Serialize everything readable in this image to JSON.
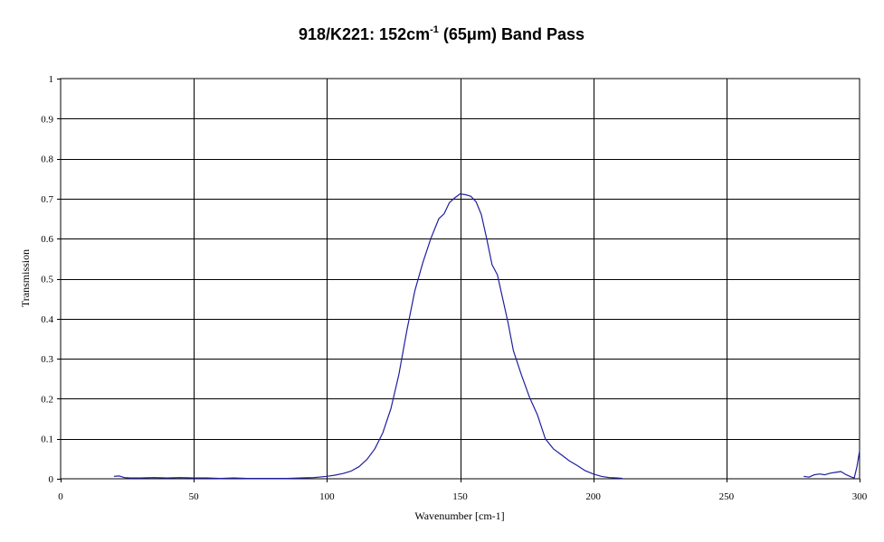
{
  "chart_data": {
    "type": "line",
    "title": {
      "main": "918/K221: 152cm",
      "superscript": "-1",
      "rest": " (65",
      "micro": "μ",
      "rest2": "m) Band Pass"
    },
    "xlabel": "Wavenumber [cm-1]",
    "ylabel": "Transmission",
    "xlim": [
      0,
      300
    ],
    "ylim": [
      0,
      1
    ],
    "xticks": [
      0,
      50,
      100,
      150,
      200,
      250,
      300
    ],
    "yticks": [
      0,
      0.1,
      0.2,
      0.3,
      0.4,
      0.5,
      0.6,
      0.7,
      0.8,
      0.9,
      1
    ],
    "grid": true,
    "legend": "none",
    "line_color": "#1f1fa0",
    "series": [
      {
        "segments": [
          [
            [
              20,
              0.006
            ],
            [
              22,
              0.007
            ],
            [
              24,
              0.003
            ],
            [
              26,
              0.002
            ],
            [
              30,
              0.002
            ],
            [
              35,
              0.003
            ],
            [
              40,
              0.002
            ],
            [
              45,
              0.003
            ],
            [
              50,
              0.002
            ],
            [
              55,
              0.002
            ],
            [
              60,
              0.001
            ],
            [
              65,
              0.002
            ],
            [
              70,
              0.001
            ],
            [
              75,
              0.001
            ],
            [
              80,
              0.001
            ],
            [
              85,
              0.001
            ],
            [
              90,
              0.002
            ],
            [
              95,
              0.003
            ],
            [
              100,
              0.006
            ],
            [
              103,
              0.009
            ],
            [
              106,
              0.013
            ],
            [
              109,
              0.019
            ],
            [
              112,
              0.03
            ],
            [
              115,
              0.048
            ],
            [
              118,
              0.075
            ],
            [
              121,
              0.115
            ],
            [
              124,
              0.175
            ],
            [
              127,
              0.26
            ],
            [
              130,
              0.37
            ],
            [
              133,
              0.47
            ],
            [
              136,
              0.54
            ],
            [
              139,
              0.6
            ],
            [
              142,
              0.65
            ],
            [
              144,
              0.662
            ],
            [
              146,
              0.69
            ],
            [
              148,
              0.702
            ],
            [
              150,
              0.712
            ],
            [
              152,
              0.71
            ],
            [
              154,
              0.706
            ],
            [
              156,
              0.692
            ],
            [
              158,
              0.66
            ],
            [
              160,
              0.6
            ],
            [
              162,
              0.535
            ],
            [
              164,
              0.51
            ],
            [
              166,
              0.45
            ],
            [
              168,
              0.39
            ],
            [
              170,
              0.32
            ],
            [
              173,
              0.26
            ],
            [
              176,
              0.205
            ],
            [
              179,
              0.16
            ],
            [
              182,
              0.1
            ],
            [
              185,
              0.075
            ],
            [
              188,
              0.06
            ],
            [
              191,
              0.045
            ],
            [
              194,
              0.033
            ],
            [
              197,
              0.02
            ],
            [
              200,
              0.012
            ],
            [
              203,
              0.006
            ],
            [
              206,
              0.003
            ],
            [
              209,
              0.002
            ],
            [
              211,
              0.001
            ]
          ],
          [
            [
              279,
              0.006
            ],
            [
              281,
              0.004
            ],
            [
              283,
              0.01
            ],
            [
              285,
              0.012
            ],
            [
              287,
              0.01
            ],
            [
              289,
              0.014
            ],
            [
              291,
              0.016
            ],
            [
              293,
              0.018
            ],
            [
              295,
              0.01
            ],
            [
              297,
              0.004
            ],
            [
              298,
              0.002
            ],
            [
              299,
              0.03
            ],
            [
              300,
              0.07
            ]
          ]
        ]
      }
    ]
  }
}
